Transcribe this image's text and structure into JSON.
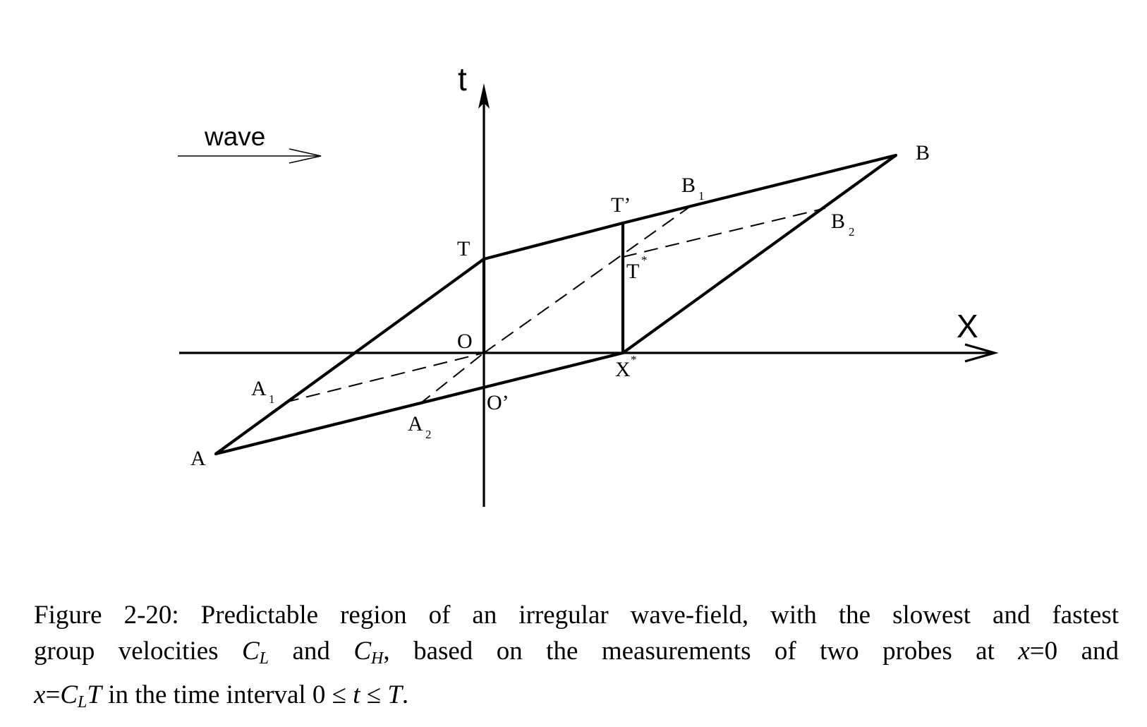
{
  "figure": {
    "arrow_label": "wave",
    "axis_t": "t",
    "axis_x": "X",
    "points": {
      "O": "O",
      "O_prime": "O’",
      "T": "T",
      "T_prime": "T’",
      "T_star": "T",
      "X_star": "X",
      "A": "A",
      "A1": "A",
      "A2": "A",
      "B": "B",
      "B1": "B",
      "B2": "B"
    },
    "subscripts": {
      "one": "1",
      "two": "2",
      "star": "*"
    }
  },
  "caption": {
    "line1": "Figure 2-20: Predictable region of an irregular wave-field, with the slowest and fastest",
    "line2_a": "group velocities",
    "line2_cl": "C",
    "line2_cl_sub": "L",
    "line2_b": "and",
    "line2_ch": "C",
    "line2_ch_sub": "H",
    "line2_c": ", based on the measurements of two probes at",
    "line2_x": "x",
    "line2_d": "=0 and",
    "line3_x": "x",
    "line3_eq": "=",
    "line3_c": "C",
    "line3_c_sub": "L",
    "line3_t": "T",
    "line3_a": "in the time interval 0 ≤",
    "line3_t2": "t",
    "line3_b": "≤",
    "line3_T": "T",
    "line3_end": "."
  }
}
